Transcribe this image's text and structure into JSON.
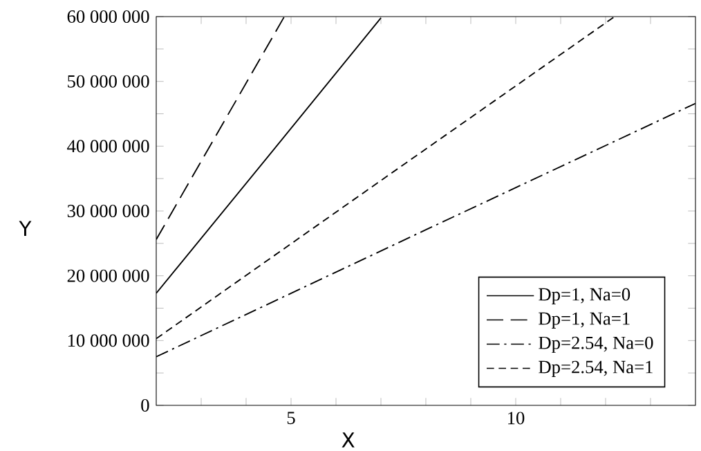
{
  "chart_data": {
    "type": "line",
    "xlabel": "X",
    "ylabel": "Y",
    "xlim": [
      2,
      14
    ],
    "xticks": [
      {
        "value": 3,
        "label": null
      },
      {
        "value": 4,
        "label": null
      },
      5,
      {
        "value": 6,
        "label": null
      },
      {
        "value": 7,
        "label": null
      },
      {
        "value": 8,
        "label": null
      },
      {
        "value": 9,
        "label": null
      },
      10,
      {
        "value": 11,
        "label": null
      },
      {
        "value": 12,
        "label": null
      },
      {
        "value": 13,
        "label": null
      }
    ],
    "ylim": [
      0,
      60000000
    ],
    "yticks": [
      {
        "value": 0,
        "label": "0"
      },
      {
        "value": 5000000,
        "label": null
      },
      {
        "value": 10000000,
        "label": "10 000 000"
      },
      {
        "value": 15000000,
        "label": null
      },
      {
        "value": 20000000,
        "label": "20 000 000"
      },
      {
        "value": 25000000,
        "label": null
      },
      {
        "value": 30000000,
        "label": "30 000 000"
      },
      {
        "value": 35000000,
        "label": null
      },
      {
        "value": 40000000,
        "label": "40 000 000"
      },
      {
        "value": 45000000,
        "label": null
      },
      {
        "value": 50000000,
        "label": "50 000 000"
      },
      {
        "value": 55000000,
        "label": null
      },
      {
        "value": 60000000,
        "label": "60 000 000"
      }
    ],
    "legend": "bottom right",
    "marker": "none",
    "series": [
      {
        "name": "Dp=1, Na=0",
        "color": "#000000",
        "line_style": "solid",
        "x": [
          2,
          4.5,
          7
        ],
        "values": [
          17300000,
          38500000,
          59800000
        ]
      },
      {
        "name": "Dp=1, Na=1",
        "color": "#000000",
        "line_style": "dashed",
        "x": [
          2,
          3.5,
          4.85
        ],
        "values": [
          25600000,
          43700000,
          60000000
        ]
      },
      {
        "name": "Dp=2.54, Na=0",
        "color": "#000000",
        "line_style": "dashdot",
        "x": [
          2,
          8,
          14
        ],
        "values": [
          7500000,
          27100000,
          46600000
        ]
      },
      {
        "name": "Dp=2.54, Na=1",
        "color": "#000000",
        "line_style": "dashed",
        "x": [
          2,
          7,
          12.2
        ],
        "values": [
          10300000,
          34700000,
          60000000
        ]
      }
    ]
  }
}
